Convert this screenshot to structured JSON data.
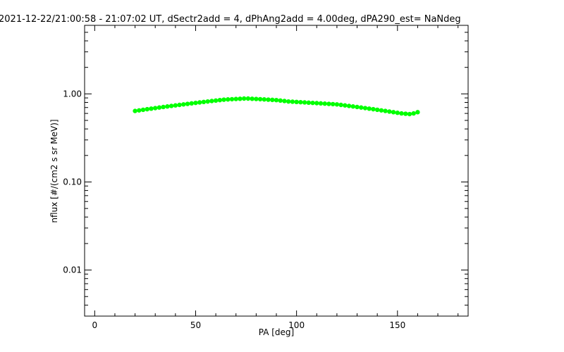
{
  "chart_data": {
    "type": "scatter",
    "title": "2021-12-22/21:00:58 - 21:07:02 UT, dSectr2add = 4, dPhAng2add = 4.00deg, dPA290_est=    NaNdeg",
    "xlabel": "PA [deg]",
    "ylabel": "nflux [#/(cm2 s sr MeV)]",
    "xlim": [
      -5,
      185
    ],
    "ylim": [
      0.003,
      6.0
    ],
    "yscale": "log",
    "grid": false,
    "x_ticks": [
      {
        "value": 0,
        "label": "0"
      },
      {
        "value": 50,
        "label": "50"
      },
      {
        "value": 100,
        "label": "100"
      },
      {
        "value": 150,
        "label": "150"
      }
    ],
    "y_ticks": [
      {
        "value": 0.01,
        "label": "0.01"
      },
      {
        "value": 0.1,
        "label": "0.10"
      },
      {
        "value": 1.0,
        "label": "1.00"
      }
    ],
    "series": [
      {
        "color": "#00ff00",
        "x": [
          20,
          22,
          24,
          26,
          28,
          30,
          32,
          34,
          36,
          38,
          40,
          42,
          44,
          46,
          48,
          50,
          52,
          54,
          56,
          58,
          60,
          62,
          64,
          66,
          68,
          70,
          72,
          74,
          76,
          78,
          80,
          82,
          84,
          86,
          88,
          90,
          92,
          94,
          96,
          98,
          100,
          102,
          104,
          106,
          108,
          110,
          112,
          114,
          116,
          118,
          120,
          122,
          124,
          126,
          128,
          130,
          132,
          134,
          136,
          138,
          140,
          142,
          144,
          146,
          148,
          150,
          152,
          154,
          156,
          158,
          160
        ],
        "y": [
          0.64,
          0.65,
          0.66,
          0.67,
          0.68,
          0.69,
          0.7,
          0.71,
          0.72,
          0.73,
          0.74,
          0.75,
          0.76,
          0.77,
          0.78,
          0.79,
          0.8,
          0.81,
          0.82,
          0.83,
          0.84,
          0.85,
          0.86,
          0.865,
          0.87,
          0.875,
          0.88,
          0.885,
          0.885,
          0.88,
          0.875,
          0.87,
          0.865,
          0.86,
          0.855,
          0.85,
          0.84,
          0.83,
          0.82,
          0.815,
          0.81,
          0.805,
          0.8,
          0.795,
          0.79,
          0.785,
          0.78,
          0.775,
          0.77,
          0.765,
          0.76,
          0.75,
          0.74,
          0.73,
          0.72,
          0.71,
          0.7,
          0.69,
          0.68,
          0.67,
          0.66,
          0.65,
          0.64,
          0.63,
          0.62,
          0.61,
          0.6,
          0.595,
          0.59,
          0.6,
          0.62
        ]
      }
    ]
  }
}
